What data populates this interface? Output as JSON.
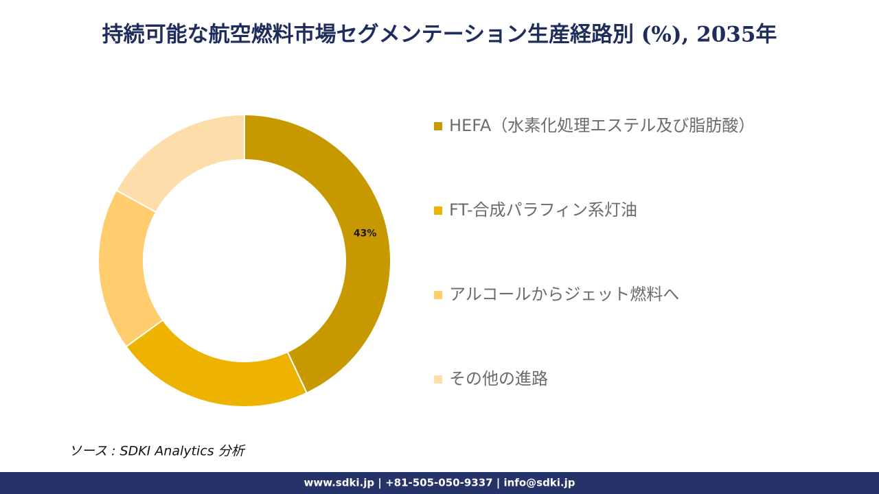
{
  "chart_data": {
    "type": "donut",
    "title": "持続可能な航空燃料市場セグメンテーション生産経路別 (%), 2035年",
    "categories": [
      "HEFA（水素化処理エステル及び脂肪酸）",
      "FT-合成パラフィン系灯油",
      "アルコールからジェット燃料へ",
      "その他の進路"
    ],
    "values": [
      43,
      22,
      18,
      17
    ],
    "value_labels": [
      "43%",
      null,
      null,
      null
    ],
    "colors": [
      "#c89800",
      "#eeb300",
      "#ffcc6e",
      "#fdddaa"
    ],
    "legend": "right"
  },
  "source": "ソース : SDKI Analytics 分析",
  "footer": "www.sdki.jp | +81-505-050-9337 | info@sdki.jp"
}
